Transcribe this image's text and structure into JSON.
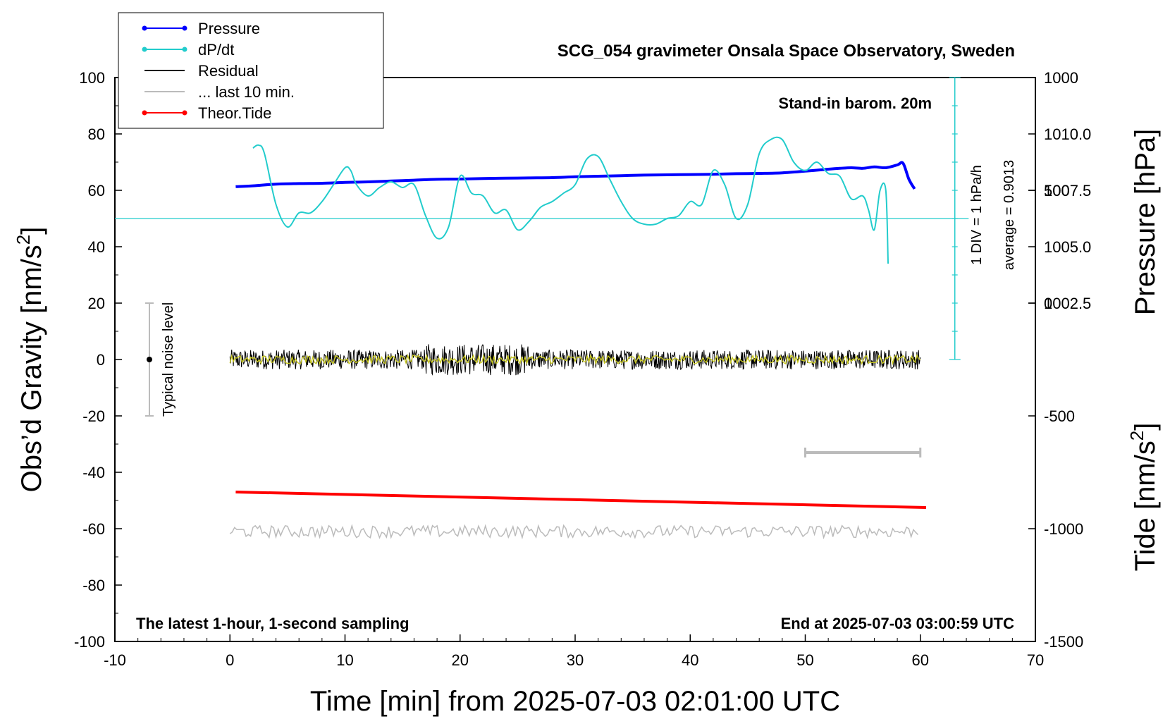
{
  "chart_data": {
    "type": "line",
    "title": "SCG_054 gravimeter Onsala Space Observatory, Sweden",
    "xlabel": "Time [min] from 2025-07-03 02:01:00 UTC",
    "ylabel_main": "Obs’d Gravity [nm/s",
    "ylabel_sup": "2",
    "ylabel_main_close": "]",
    "ylabel_pressure": "Pressure [hPa]",
    "ylabel_tide": "Tide [nm/s",
    "ylabel_tide_sup": "2",
    "ylabel_tide_close": "]",
    "xlim": [
      -10,
      70
    ],
    "ylim": [
      -100,
      100
    ],
    "x_ticks": [
      "-10",
      "0",
      "10",
      "20",
      "30",
      "40",
      "50",
      "60",
      "70"
    ],
    "y_ticks": [
      "100",
      "80",
      "60",
      "40",
      "20",
      "0",
      "-20",
      "-40",
      "-60",
      "-80",
      "-100"
    ],
    "pressure_ticks": [
      "1010.0",
      "1007.5",
      "1005.0",
      "1002.5"
    ],
    "pressure_tick_values": [
      1010.0,
      1007.5,
      1005.0,
      1002.5
    ],
    "pressure_mapping": {
      "hpa_at_gravity_60": 1007.5,
      "hpa_per_gravity_unit": 0.125
    },
    "tide_ticks": [
      "1000",
      "500",
      "0",
      "-500",
      "-1000",
      "-1500"
    ],
    "tide_tick_values": [
      1000,
      500,
      0,
      -500,
      -1000,
      -1500
    ],
    "tide_mapping": {
      "tide_at_gravity_-100": -1500,
      "tide_per_gravity_unit": 12.5
    },
    "grid": false,
    "legend_position": "top-left",
    "legend": [
      {
        "label": "Pressure",
        "color": "#0000ff",
        "marker": "dot"
      },
      {
        "label": "dP/dt",
        "color": "#22cccc",
        "marker": "dot"
      },
      {
        "label": "Residual",
        "color": "#000000",
        "marker": "none"
      },
      {
        "label": "... last 10 min.",
        "color": "#bbbbbb",
        "marker": "none"
      },
      {
        "label": "Theor.Tide",
        "color": "#ff0000",
        "marker": "dot"
      }
    ],
    "annotations": {
      "barometer": "Stand-in barom. 20m",
      "sampling": "The latest 1-hour, 1-second sampling",
      "end_time": "End at 2025-07-03 03:00:59 UTC",
      "noise": "Typical noise level",
      "div_scale": "1 DIV = 1 hPa/h",
      "average": "average = 0.9013"
    },
    "dpdt_baseline": 50,
    "dpdt_scale_bar": {
      "x": 63,
      "y_top": 100,
      "y_bottom": 0,
      "div": 5
    },
    "noise_bar": {
      "x": -7,
      "center": 0,
      "half_range": 20
    },
    "last10_bar": {
      "x_start": 50,
      "x_end": 60,
      "y": -33
    },
    "series": [
      {
        "name": "Pressure",
        "color": "#0000ff",
        "x": [
          0.5,
          2,
          4,
          6,
          8,
          10,
          12,
          14,
          16,
          18,
          20,
          22,
          24,
          26,
          28,
          30,
          32,
          34,
          36,
          38,
          40,
          42,
          44,
          46,
          48,
          50,
          52,
          53,
          54,
          55,
          56,
          57,
          58,
          58.5,
          59,
          59.5
        ],
        "y": [
          61.3,
          61.6,
          62.2,
          62.4,
          62.5,
          62.8,
          63.0,
          63.3,
          63.6,
          63.9,
          64.0,
          64.2,
          64.3,
          64.4,
          64.5,
          64.8,
          65.0,
          65.2,
          65.4,
          65.5,
          65.6,
          65.7,
          65.9,
          66.0,
          66.2,
          66.8,
          67.5,
          67.8,
          68.0,
          67.8,
          68.3,
          68.0,
          69.0,
          69.6,
          64.0,
          60.5
        ]
      },
      {
        "name": "dP/dt",
        "color": "#22cccc",
        "x": [
          2,
          2.5,
          3,
          4,
          5,
          6,
          7,
          8,
          9,
          10,
          10.5,
          11,
          12,
          13,
          14,
          15,
          16,
          17,
          18,
          19,
          20,
          21,
          22,
          23,
          24,
          25,
          26,
          27,
          28,
          29,
          30,
          31,
          32,
          33,
          34,
          35,
          36,
          37,
          38,
          39,
          40,
          41,
          42,
          43,
          44,
          45,
          46,
          47,
          48,
          49,
          50,
          51,
          52,
          53,
          54,
          55,
          55.5,
          56,
          56.5,
          57,
          57.2
        ],
        "y": [
          75,
          76,
          73,
          55,
          47,
          52,
          52,
          56,
          62,
          68,
          67,
          62,
          58,
          61,
          63,
          61,
          62,
          51,
          43,
          47,
          65,
          59,
          58,
          52,
          53,
          46,
          49,
          54,
          56,
          59,
          62,
          71,
          72,
          64,
          56,
          50,
          48,
          48,
          50,
          51,
          56,
          55,
          67,
          62,
          50,
          55,
          73,
          78,
          78,
          70,
          67,
          70,
          66,
          65,
          57,
          58,
          53,
          46,
          60,
          60,
          34
        ]
      },
      {
        "name": "Residual",
        "color": "#000000",
        "x_range": [
          0,
          60
        ],
        "center": 0,
        "amplitude": 3.5
      },
      {
        "name": "Smoothed residual",
        "color": "#c8c820",
        "x_range": [
          0,
          60
        ],
        "center": 0,
        "amplitude": 1.5
      },
      {
        "name": "... last 10 min.",
        "color": "#bbbbbb",
        "x_range": [
          0,
          60
        ],
        "center": -61,
        "amplitude": 2.2
      },
      {
        "name": "Theor.Tide",
        "color": "#ff0000",
        "x": [
          0.5,
          60.5
        ],
        "y": [
          -47,
          -52.5
        ]
      }
    ]
  }
}
